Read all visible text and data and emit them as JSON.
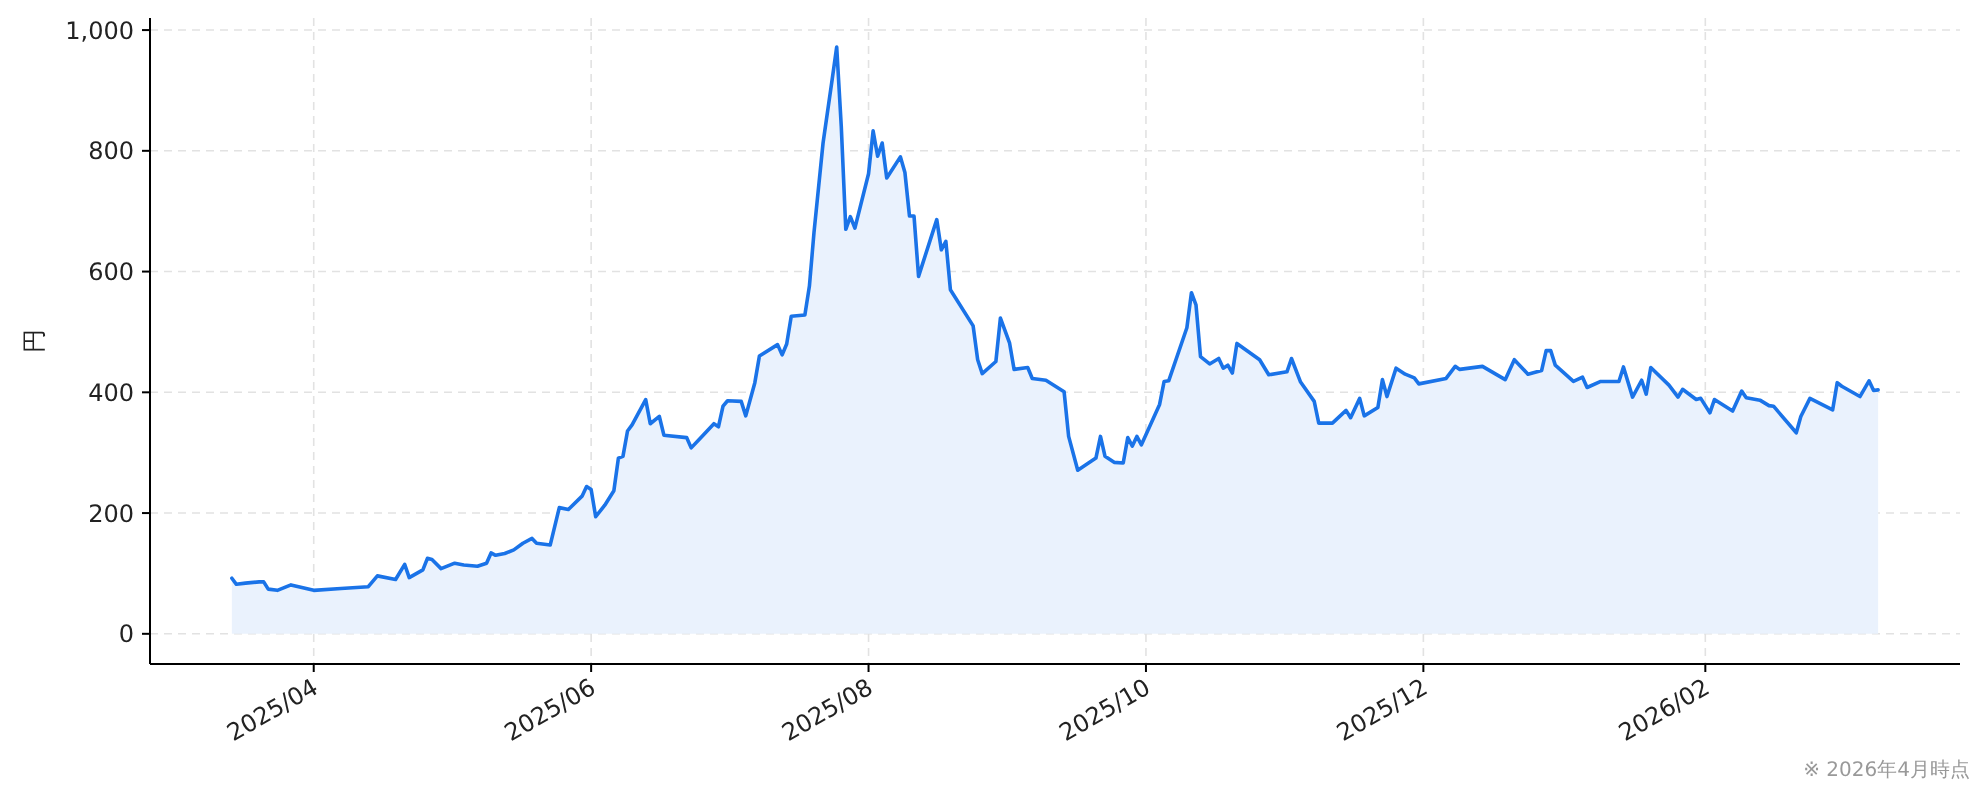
{
  "chart_data": {
    "type": "area",
    "ylabel": "円",
    "annotations": [
      "※ 2026年4月時点"
    ],
    "color": "#1a73e8",
    "grid": true,
    "xlim": [
      "2025-02-24",
      "2026-03-29"
    ],
    "ylim": [
      -50,
      1020
    ],
    "xticks": [
      {
        "value": "2025-04-01",
        "label": "2025/04"
      },
      {
        "value": "2025-06-01",
        "label": "2025/06"
      },
      {
        "value": "2025-08-01",
        "label": "2025/08"
      },
      {
        "value": "2025-10-01",
        "label": "2025/10"
      },
      {
        "value": "2025-12-01",
        "label": "2025/12"
      },
      {
        "value": "2026-02-01",
        "label": "2026/02"
      }
    ],
    "yticks": [
      0,
      200,
      400,
      600,
      800,
      {
        "value": 1000,
        "label": "1,000"
      }
    ],
    "x": [
      "2025-03-14",
      "2025-03-15",
      "2025-03-17",
      "2025-03-20",
      "2025-03-21",
      "2025-03-22",
      "2025-03-24",
      "2025-03-27",
      "2025-04-01",
      "2025-04-07",
      "2025-04-13",
      "2025-04-15",
      "2025-04-19",
      "2025-04-21",
      "2025-04-22",
      "2025-04-25",
      "2025-04-26",
      "2025-04-27",
      "2025-04-29",
      "2025-05-02",
      "2025-05-04",
      "2025-05-07",
      "2025-05-09",
      "2025-05-10",
      "2025-05-11",
      "2025-05-13",
      "2025-05-15",
      "2025-05-17",
      "2025-05-19",
      "2025-05-20",
      "2025-05-23",
      "2025-05-25",
      "2025-05-27",
      "2025-05-30",
      "2025-05-31",
      "2025-06-01",
      "2025-06-02",
      "2025-06-04",
      "2025-06-06",
      "2025-06-07",
      "2025-06-08",
      "2025-06-09",
      "2025-06-10",
      "2025-06-13",
      "2025-06-14",
      "2025-06-16",
      "2025-06-17",
      "2025-06-22",
      "2025-06-23",
      "2025-06-25",
      "2025-06-28",
      "2025-06-29",
      "2025-06-30",
      "2025-07-01",
      "2025-07-04",
      "2025-07-05",
      "2025-07-07",
      "2025-07-08",
      "2025-07-12",
      "2025-07-13",
      "2025-07-14",
      "2025-07-15",
      "2025-07-18",
      "2025-07-19",
      "2025-07-20",
      "2025-07-22",
      "2025-07-24",
      "2025-07-25",
      "2025-07-26",
      "2025-07-27",
      "2025-07-28",
      "2025-07-29",
      "2025-08-01",
      "2025-08-02",
      "2025-08-03",
      "2025-08-04",
      "2025-08-05",
      "2025-08-08",
      "2025-08-09",
      "2025-08-10",
      "2025-08-11",
      "2025-08-12",
      "2025-08-16",
      "2025-08-17",
      "2025-08-18",
      "2025-08-19",
      "2025-08-24",
      "2025-08-25",
      "2025-08-26",
      "2025-08-29",
      "2025-08-30",
      "2025-09-01",
      "2025-09-02",
      "2025-09-05",
      "2025-09-06",
      "2025-09-09",
      "2025-09-13",
      "2025-09-14",
      "2025-09-16",
      "2025-09-20",
      "2025-09-21",
      "2025-09-22",
      "2025-09-24",
      "2025-09-26",
      "2025-09-27",
      "2025-09-28",
      "2025-09-29",
      "2025-09-30",
      "2025-10-04",
      "2025-10-05",
      "2025-10-06",
      "2025-10-10",
      "2025-10-11",
      "2025-10-12",
      "2025-10-13",
      "2025-10-15",
      "2025-10-17",
      "2025-10-18",
      "2025-10-19",
      "2025-10-20",
      "2025-10-21",
      "2025-10-26",
      "2025-10-28",
      "2025-11-01",
      "2025-11-02",
      "2025-11-04",
      "2025-11-07",
      "2025-11-08",
      "2025-11-11",
      "2025-11-14",
      "2025-11-15",
      "2025-11-17",
      "2025-11-18",
      "2025-11-21",
      "2025-11-22",
      "2025-11-23",
      "2025-11-25",
      "2025-11-27",
      "2025-11-29",
      "2025-11-30",
      "2025-12-06",
      "2025-12-08",
      "2025-12-09",
      "2025-12-14",
      "2025-12-19",
      "2025-12-21",
      "2025-12-24",
      "2025-12-27",
      "2025-12-28",
      "2025-12-29",
      "2025-12-30",
      "2026-01-03",
      "2026-01-05",
      "2026-01-06",
      "2026-01-09",
      "2026-01-13",
      "2026-01-14",
      "2026-01-16",
      "2026-01-18",
      "2026-01-19",
      "2026-01-20",
      "2026-01-24",
      "2026-01-26",
      "2026-01-27",
      "2026-01-30",
      "2026-01-31",
      "2026-02-02",
      "2026-02-03",
      "2026-02-07",
      "2026-02-09",
      "2026-02-10",
      "2026-02-13",
      "2026-02-15",
      "2026-02-16",
      "2026-02-21",
      "2026-02-22",
      "2026-02-24",
      "2026-03-01",
      "2026-03-02",
      "2026-03-03",
      "2026-03-07",
      "2026-03-09",
      "2026-03-10",
      "2026-03-11"
    ],
    "values": [
      92,
      82,
      84,
      86,
      86,
      74,
      72,
      81,
      72,
      75,
      78,
      96,
      90,
      115,
      93,
      106,
      125,
      123,
      108,
      117,
      114,
      112,
      117,
      134,
      130,
      133,
      139,
      150,
      158,
      150,
      147,
      209,
      206,
      228,
      244,
      239,
      194,
      213,
      237,
      291,
      294,
      336,
      346,
      388,
      348,
      360,
      329,
      325,
      308,
      324,
      348,
      343,
      377,
      386,
      385,
      361,
      416,
      460,
      479,
      462,
      480,
      526,
      528,
      576,
      664,
      813,
      918,
      972,
      841,
      670,
      691,
      672,
      762,
      833,
      791,
      813,
      755,
      790,
      764,
      692,
      692,
      592,
      686,
      636,
      650,
      570,
      510,
      454,
      431,
      451,
      523,
      482,
      438,
      441,
      423,
      420,
      401,
      327,
      271,
      291,
      327,
      294,
      284,
      283,
      325,
      311,
      327,
      313,
      380,
      418,
      419,
      507,
      565,
      545,
      459,
      447,
      456,
      440,
      445,
      432,
      481,
      454,
      429,
      434,
      456,
      417,
      385,
      349,
      349,
      370,
      358,
      390,
      361,
      375,
      421,
      393,
      440,
      430,
      424,
      414,
      423,
      443,
      438,
      443,
      421,
      454,
      430,
      436,
      469,
      469,
      445,
      418,
      425,
      408,
      418,
      418,
      442,
      392,
      420,
      397,
      441,
      412,
      392,
      405,
      388,
      390,
      366,
      388,
      369,
      402,
      391,
      387,
      378,
      377,
      333,
      360,
      390,
      371,
      416,
      410,
      393,
      419,
      403,
      404
    ]
  }
}
